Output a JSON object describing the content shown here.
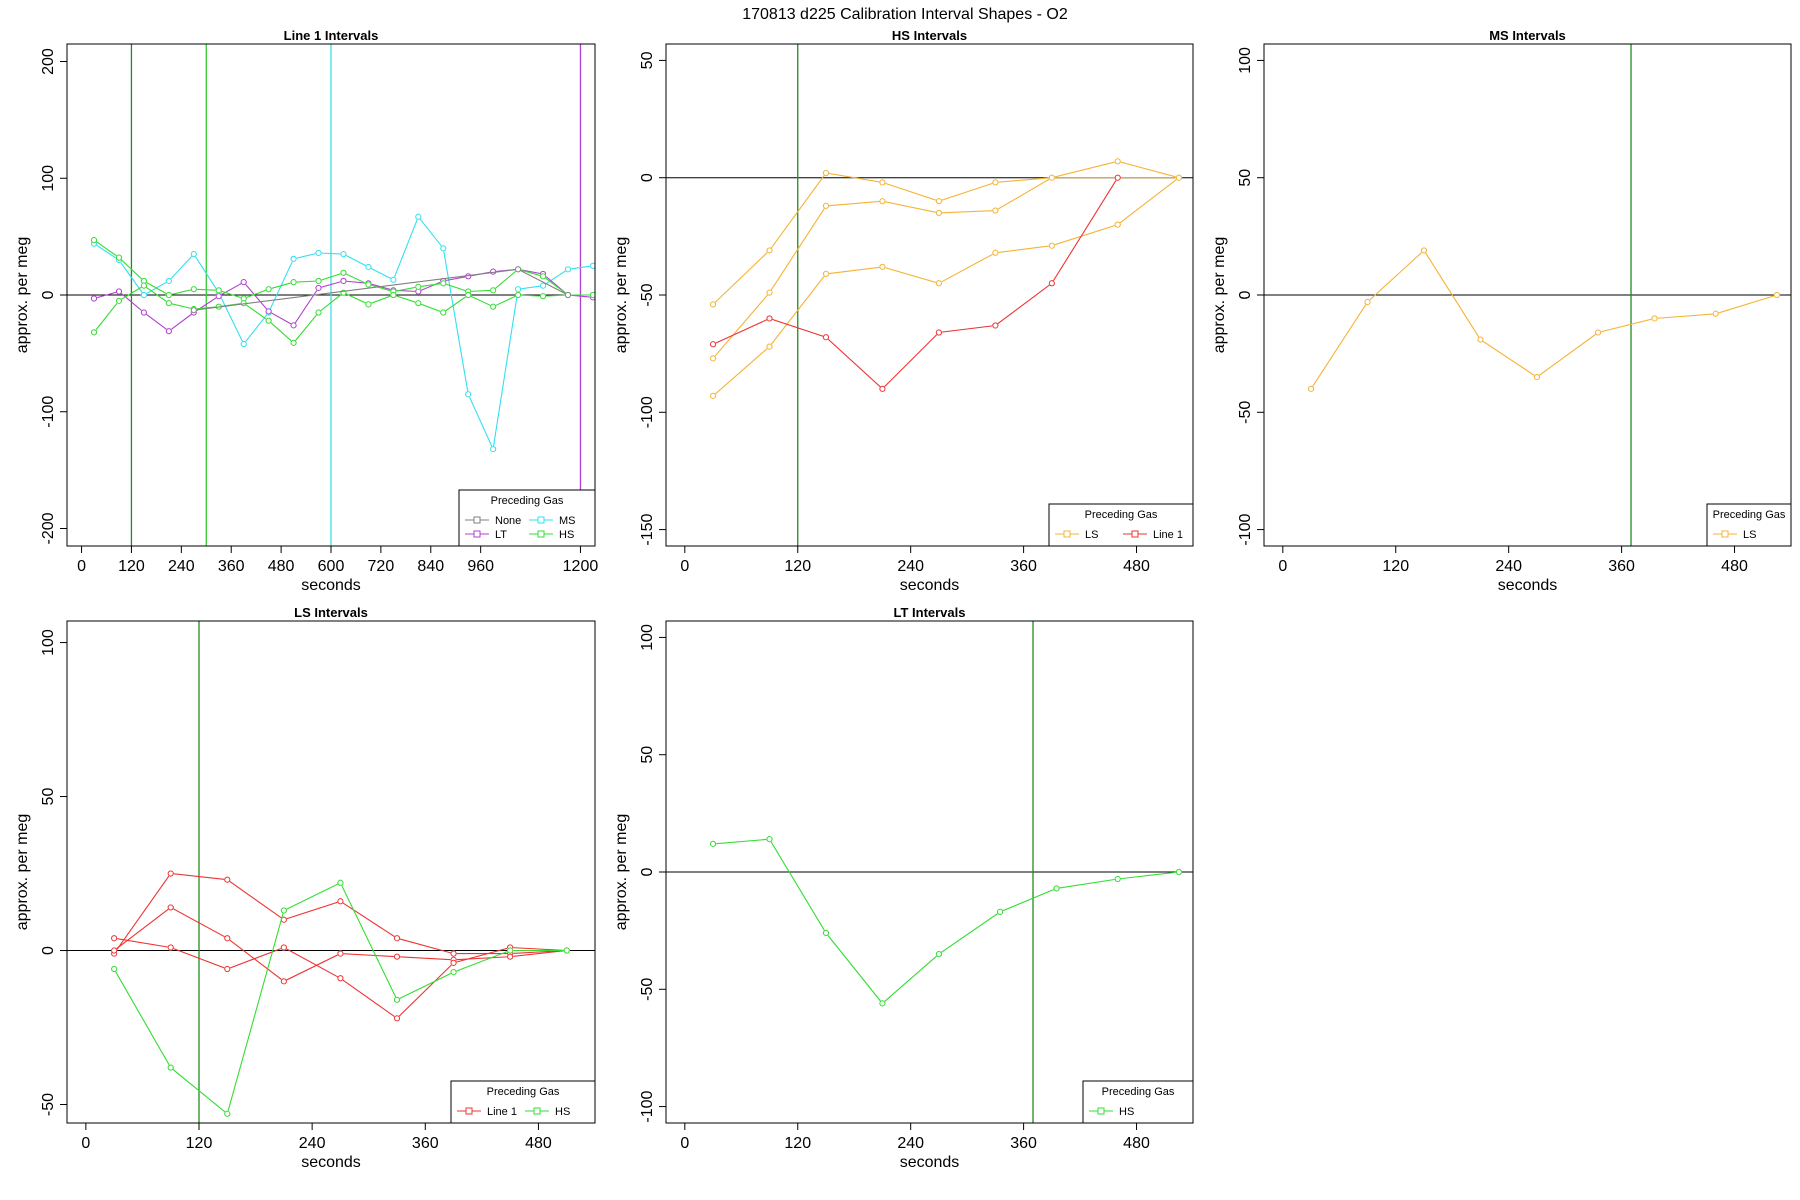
{
  "title": "170813   d225   Calibration Interval Shapes - O2",
  "chart_data": [
    {
      "type": "line",
      "title": "Line 1 Intervals",
      "xlabel": "seconds",
      "ylabel": "approx. per meg",
      "xlim": [
        -35,
        1235
      ],
      "ylim": [
        -215,
        215
      ],
      "xticks": [
        0,
        120,
        240,
        360,
        480,
        600,
        720,
        840,
        960,
        1200
      ],
      "yticks": [
        -200,
        -100,
        0,
        100,
        200
      ],
      "hline": 0,
      "vlines": [
        {
          "x": 120,
          "color": "#228B22"
        },
        {
          "x": 300,
          "color": "#32CD32"
        },
        {
          "x": 600,
          "color": "#40E0E0"
        },
        {
          "x": 1200,
          "color": "#B040D0"
        }
      ],
      "legend": {
        "title": "Preceding Gas",
        "ncol": 2,
        "entries": [
          {
            "name": "None",
            "color": "#808080"
          },
          {
            "name": "MS",
            "color": "#33E0F0"
          },
          {
            "name": "LT",
            "color": "#B040D0"
          },
          {
            "name": "HS",
            "color": "#33DD33"
          }
        ]
      },
      "series": [
        {
          "name": "MS",
          "color": "#33E0F0",
          "x": [
            30,
            90,
            150,
            210,
            270,
            330,
            390,
            450,
            510,
            570,
            630,
            690,
            750,
            810,
            870,
            930,
            990,
            1050,
            1110,
            1170,
            1230
          ],
          "y": [
            44,
            30,
            0,
            12,
            35,
            2,
            -42,
            -15,
            31,
            36,
            35,
            24,
            13,
            67,
            40,
            -85,
            -132,
            5,
            8,
            22,
            25
          ]
        },
        {
          "name": "LT",
          "color": "#B040D0",
          "x": [
            30,
            90,
            150,
            210,
            270,
            330,
            390,
            450,
            510,
            570,
            630,
            690,
            750,
            810,
            870,
            930,
            990,
            1050,
            1110,
            1170,
            1230
          ],
          "y": [
            -3,
            3,
            -15,
            -31,
            -15,
            -1,
            11,
            -14,
            -26,
            6,
            12,
            10,
            4,
            3,
            12,
            16,
            20,
            22,
            18,
            0,
            -2
          ]
        },
        {
          "name": "HS",
          "color": "#33DD33",
          "x": [
            30,
            90,
            150,
            210,
            270,
            330,
            390,
            450,
            510,
            570,
            630,
            690,
            750,
            810,
            870,
            930,
            990,
            1050,
            1110,
            1170,
            1230
          ],
          "y": [
            47,
            32,
            12,
            0,
            5,
            4,
            -3,
            5,
            11,
            12,
            19,
            9,
            3,
            7,
            10,
            3,
            4,
            22,
            16,
            0,
            0
          ]
        },
        {
          "name": "HS",
          "color": "#33DD33",
          "x": [
            30,
            90,
            150,
            210,
            270,
            330,
            390,
            450,
            510,
            570,
            630,
            690,
            750,
            810,
            870,
            930,
            990,
            1050,
            1110,
            1170,
            1230
          ],
          "y": [
            -32,
            -5,
            8,
            -7,
            -12,
            -10,
            -7,
            -22,
            -41,
            -15,
            2,
            -8,
            0,
            -7,
            -15,
            0,
            -10,
            0,
            -1,
            0,
            0
          ]
        },
        {
          "name": "None",
          "color": "#808080",
          "x": [
            270,
            1050,
            1170
          ],
          "y": [
            -13,
            22,
            0
          ]
        }
      ]
    },
    {
      "type": "line",
      "title": "HS Intervals",
      "xlabel": "seconds",
      "ylabel": "approx. per meg",
      "xlim": [
        -20,
        540
      ],
      "ylim": [
        -157,
        57
      ],
      "xticks": [
        0,
        120,
        240,
        360,
        480
      ],
      "yticks": [
        -150,
        -100,
        -50,
        0,
        50
      ],
      "hline": 0,
      "vlines": [
        {
          "x": 120,
          "color": "#228B22"
        }
      ],
      "legend": {
        "title": "Preceding Gas",
        "ncol": 2,
        "entries": [
          {
            "name": "LS",
            "color": "#F5B335"
          },
          {
            "name": "Line 1",
            "color": "#EE3333"
          }
        ]
      },
      "series": [
        {
          "name": "LS",
          "color": "#F5B335",
          "x": [
            30,
            90,
            150,
            210,
            270,
            330,
            390,
            460,
            525
          ],
          "y": [
            -54,
            -31,
            2,
            -2,
            -10,
            -2,
            0,
            7,
            0
          ]
        },
        {
          "name": "LS",
          "color": "#F5B335",
          "x": [
            30,
            90,
            150,
            210,
            270,
            330,
            390,
            460,
            525
          ],
          "y": [
            -77,
            -49,
            -12,
            -10,
            -15,
            -14,
            0,
            0,
            0
          ]
        },
        {
          "name": "LS",
          "color": "#F5B335",
          "x": [
            30,
            90,
            150,
            210,
            270,
            330,
            390,
            460,
            525
          ],
          "y": [
            -93,
            -72,
            -41,
            -38,
            -45,
            -32,
            -29,
            -20,
            0
          ]
        },
        {
          "name": "Line 1",
          "color": "#EE3333",
          "x": [
            30,
            90,
            150,
            210,
            270,
            330,
            390,
            460
          ],
          "y": [
            -71,
            -60,
            -68,
            -90,
            -66,
            -63,
            -45,
            0
          ]
        }
      ]
    },
    {
      "type": "line",
      "title": "MS Intervals",
      "xlabel": "seconds",
      "ylabel": "approx. per meg",
      "xlim": [
        -20,
        540
      ],
      "ylim": [
        -107,
        107
      ],
      "xticks": [
        0,
        120,
        240,
        360,
        480
      ],
      "yticks": [
        -100,
        -50,
        0,
        50,
        100
      ],
      "hline": 0,
      "vlines": [
        {
          "x": 370,
          "color": "#228B22"
        }
      ],
      "legend": {
        "title": "Preceding Gas",
        "ncol": 1,
        "entries": [
          {
            "name": "LS",
            "color": "#F5B335"
          }
        ]
      },
      "series": [
        {
          "name": "LS",
          "color": "#F5B335",
          "x": [
            30,
            90,
            150,
            210,
            270,
            335,
            395,
            460,
            525
          ],
          "y": [
            -40,
            -3,
            19,
            -19,
            -35,
            -16,
            -10,
            -8,
            0
          ]
        }
      ]
    },
    {
      "type": "line",
      "title": "LS Intervals",
      "xlabel": "seconds",
      "ylabel": "approx. per meg",
      "xlim": [
        -20,
        540
      ],
      "ylim": [
        -56,
        107
      ],
      "xticks": [
        0,
        120,
        240,
        360,
        480
      ],
      "yticks": [
        -50,
        0,
        50,
        100
      ],
      "hline": 0,
      "vlines": [
        {
          "x": 120,
          "color": "#228B22"
        }
      ],
      "legend": {
        "title": "Preceding Gas",
        "ncol": 2,
        "entries": [
          {
            "name": "Line 1",
            "color": "#EE3333"
          },
          {
            "name": "HS",
            "color": "#33DD33"
          }
        ]
      },
      "series": [
        {
          "name": "Line 1",
          "color": "#EE3333",
          "x": [
            30,
            90,
            150,
            210,
            270,
            330,
            390,
            450,
            510
          ],
          "y": [
            -1,
            25,
            23,
            10,
            16,
            4,
            -1,
            -1,
            0
          ]
        },
        {
          "name": "Line 1",
          "color": "#EE3333",
          "x": [
            30,
            90,
            150,
            210,
            270,
            330,
            390,
            450,
            510
          ],
          "y": [
            0,
            14,
            4,
            -10,
            -1,
            -2,
            -3,
            -2,
            0
          ]
        },
        {
          "name": "Line 1",
          "color": "#EE3333",
          "x": [
            30,
            90,
            150,
            210,
            270,
            330,
            390,
            450,
            510
          ],
          "y": [
            4,
            1,
            -6,
            1,
            -9,
            -22,
            -4,
            1,
            0
          ]
        },
        {
          "name": "HS",
          "color": "#33DD33",
          "x": [
            30,
            90,
            150,
            210,
            270,
            330,
            390,
            450,
            510
          ],
          "y": [
            -6,
            -38,
            -53,
            13,
            22,
            -16,
            -7,
            0,
            0
          ]
        }
      ]
    },
    {
      "type": "line",
      "title": "LT Intervals",
      "xlabel": "seconds",
      "ylabel": "approx. per meg",
      "xlim": [
        -20,
        540
      ],
      "ylim": [
        -107,
        107
      ],
      "xticks": [
        0,
        120,
        240,
        360,
        480
      ],
      "yticks": [
        -100,
        -50,
        0,
        50,
        100
      ],
      "hline": 0,
      "vlines": [
        {
          "x": 370,
          "color": "#228B22"
        }
      ],
      "legend": {
        "title": "Preceding Gas",
        "ncol": 1,
        "entries": [
          {
            "name": "HS",
            "color": "#33DD33"
          }
        ]
      },
      "series": [
        {
          "name": "HS",
          "color": "#33DD33",
          "x": [
            30,
            90,
            150,
            210,
            270,
            335,
            395,
            460,
            525
          ],
          "y": [
            12,
            14,
            -26,
            -56,
            -35,
            -17,
            -7,
            -3,
            0
          ]
        }
      ]
    }
  ]
}
